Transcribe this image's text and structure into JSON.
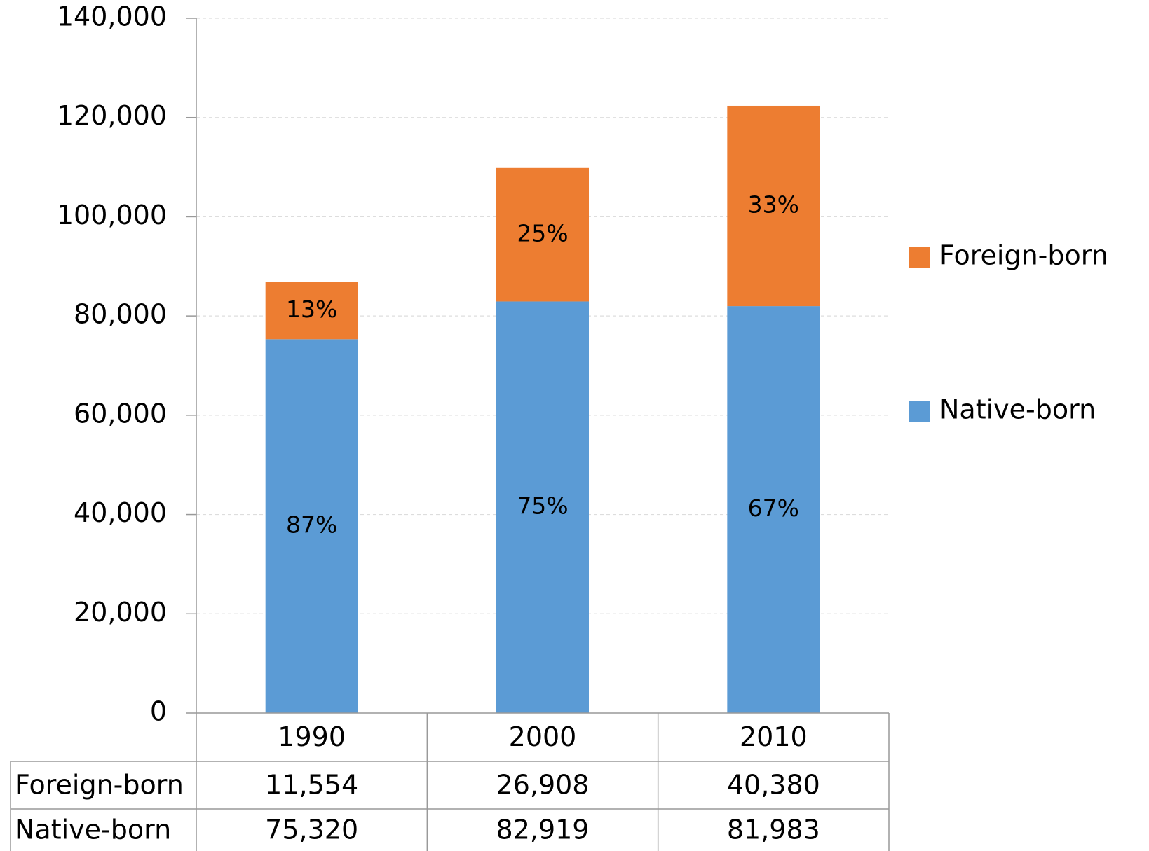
{
  "chart_data": {
    "type": "stacked_bar",
    "categories": [
      "1990",
      "2000",
      "2010"
    ],
    "series": [
      {
        "name": "Native-born",
        "color": "#5b9bd5",
        "values": [
          75320,
          82919,
          81983
        ],
        "value_labels": [
          "75,320",
          "82,919",
          "81,983"
        ],
        "share_labels": [
          "87%",
          "75%",
          "67%"
        ]
      },
      {
        "name": "Foreign-born",
        "color": "#ed7d31",
        "values": [
          11554,
          26908,
          40380
        ],
        "value_labels": [
          "11,554",
          "26,908",
          "40,380"
        ],
        "share_labels": [
          "13%",
          "25%",
          "33%"
        ]
      }
    ],
    "ylim": [
      0,
      140000
    ],
    "yticks": [
      0,
      {
        "value": 20000,
        "label": "20,000"
      },
      {
        "value": 40000,
        "label": "40,000"
      },
      {
        "value": 60000,
        "label": "60,000"
      },
      {
        "value": 80000,
        "label": "80,000"
      },
      {
        "value": 100000,
        "label": "100,000"
      },
      {
        "value": 120000,
        "label": "120,000"
      },
      {
        "value": 140000,
        "label": "140,000"
      }
    ],
    "grid": true,
    "legend": "right",
    "data_table": true
  }
}
